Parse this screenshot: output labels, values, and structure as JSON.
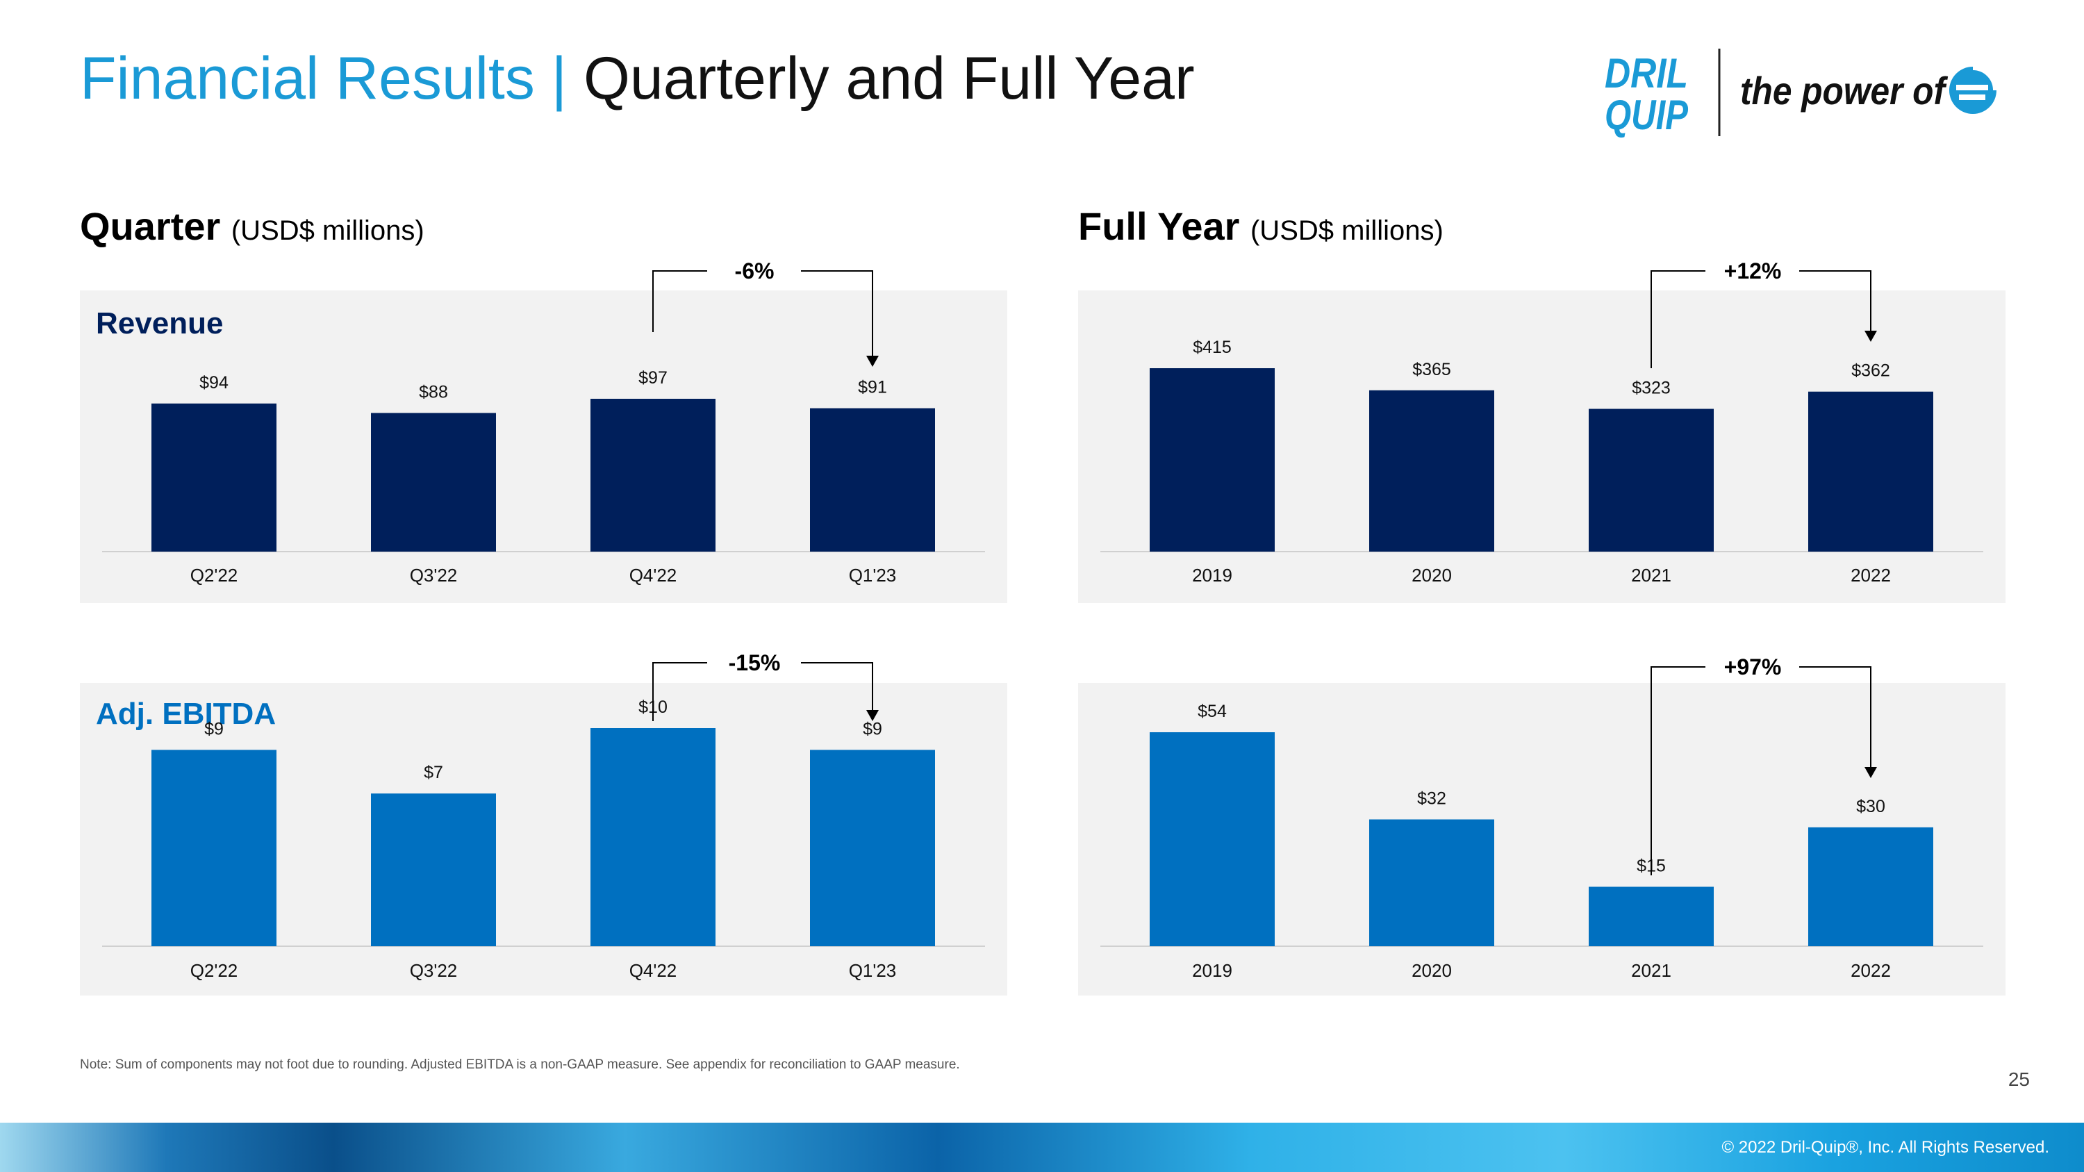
{
  "header": {
    "title_part1": "Financial Results",
    "separator": " | ",
    "title_part2": "Quarterly and Full Year",
    "logo_text": "DRIL QUIP",
    "tagline": "the power of"
  },
  "colors": {
    "title_accent": "#1a9ad6",
    "revenue_bar": "#001f5b",
    "ebitda_bar": "#0070c0",
    "revenue_label": "#001f5b",
    "ebitda_label": "#0070c0",
    "panel_bg": "#f2f2f2"
  },
  "sections": {
    "quarter_title": "Quarter",
    "quarter_unit": "(USD$ millions)",
    "full_year_title": "Full Year",
    "full_year_unit": "(USD$ millions)",
    "revenue_label": "Revenue",
    "ebitda_label": "Adj. EBITDA"
  },
  "chart_data": [
    {
      "type": "bar",
      "id": "quarter-revenue",
      "categories": [
        "Q2'22",
        "Q3'22",
        "Q4'22",
        "Q1'23"
      ],
      "values": [
        94,
        88,
        97,
        91
      ],
      "value_labels": [
        "$94",
        "$88",
        "$97",
        "$91"
      ],
      "change_label": "-6%",
      "change_from": 2,
      "change_to": 3
    },
    {
      "type": "bar",
      "id": "full-year-revenue",
      "categories": [
        "2019",
        "2020",
        "2021",
        "2022"
      ],
      "values": [
        415,
        365,
        323,
        362
      ],
      "value_labels": [
        "$415",
        "$365",
        "$323",
        "$362"
      ],
      "change_label": "+12%",
      "change_from": 2,
      "change_to": 3
    },
    {
      "type": "bar",
      "id": "quarter-ebitda",
      "categories": [
        "Q2'22",
        "Q3'22",
        "Q4'22",
        "Q1'23"
      ],
      "values": [
        9,
        7,
        10,
        9
      ],
      "value_labels": [
        "$9",
        "$7",
        "$10",
        "$9"
      ],
      "change_label": "-15%",
      "change_from": 2,
      "change_to": 3
    },
    {
      "type": "bar",
      "id": "full-year-ebitda",
      "categories": [
        "2019",
        "2020",
        "2021",
        "2022"
      ],
      "values": [
        54,
        32,
        15,
        30
      ],
      "value_labels": [
        "$54",
        "$32",
        "$15",
        "$30"
      ],
      "change_label": "+97%",
      "change_from": 2,
      "change_to": 3
    }
  ],
  "footer": {
    "note": "Note: Sum of components may not foot due to rounding. Adjusted EBITDA is a non-GAAP measure. See appendix for reconciliation to GAAP measure.",
    "page_number": "25",
    "copyright": "© 2022 Dril-Quip®, Inc. All Rights Reserved."
  }
}
